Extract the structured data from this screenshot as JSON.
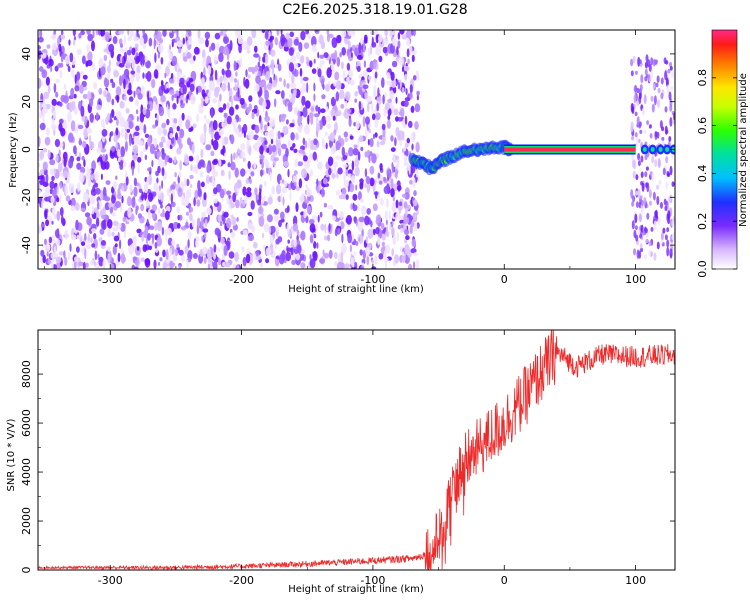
{
  "title": "C2E6.2025.318.19.01.G28",
  "chart_data": [
    {
      "type": "heatmap",
      "xlabel": "Height of straight line (km)",
      "ylabel": "Frequency (Hz)",
      "xlim": [
        -355,
        130
      ],
      "ylim": [
        -50,
        50
      ],
      "xticks": [
        -300,
        -200,
        -100,
        0,
        100
      ],
      "yticks": [
        -40,
        -20,
        0,
        20,
        40
      ],
      "colorbar": {
        "label": "Normalized spectral amplitude",
        "range": [
          0,
          1
        ],
        "ticks": [
          0.0,
          0.2,
          0.4,
          0.6,
          0.8
        ]
      },
      "noise_region_x": [
        -355,
        -70
      ],
      "doppler_track": [
        {
          "x": -70,
          "y": -4
        },
        {
          "x": -62,
          "y": -6
        },
        {
          "x": -55,
          "y": -8
        },
        {
          "x": -48,
          "y": -5
        },
        {
          "x": -40,
          "y": -3
        },
        {
          "x": -30,
          "y": -1
        },
        {
          "x": -20,
          "y": 0
        },
        {
          "x": -10,
          "y": 0.5
        },
        {
          "x": 0,
          "y": 1
        },
        {
          "x": 5,
          "y": 0
        }
      ],
      "carrier_line": {
        "x_start": 0,
        "x_end": 100,
        "y": 0,
        "amplitude": 1.0
      },
      "right_cluster_x": [
        100,
        130
      ],
      "grid": false
    },
    {
      "type": "line",
      "xlabel": "Height of straight line (km)",
      "ylabel": "SNR (10 * V/V)",
      "xlim": [
        -355,
        130
      ],
      "ylim": [
        0,
        9800
      ],
      "xticks": [
        -300,
        -200,
        -100,
        0,
        100
      ],
      "yticks": [
        0,
        2000,
        4000,
        6000,
        8000
      ],
      "color": "#ee2b2b",
      "trend": [
        {
          "x": -355,
          "y": 100
        },
        {
          "x": -250,
          "y": 100
        },
        {
          "x": -200,
          "y": 150
        },
        {
          "x": -150,
          "y": 250
        },
        {
          "x": -100,
          "y": 380
        },
        {
          "x": -70,
          "y": 480
        },
        {
          "x": -55,
          "y": 700
        },
        {
          "x": -45,
          "y": 2000
        },
        {
          "x": -40,
          "y": 3500
        },
        {
          "x": -30,
          "y": 4400
        },
        {
          "x": -15,
          "y": 5200
        },
        {
          "x": 0,
          "y": 6000
        },
        {
          "x": 15,
          "y": 7000
        },
        {
          "x": 30,
          "y": 8200
        },
        {
          "x": 40,
          "y": 8900
        },
        {
          "x": 55,
          "y": 8300
        },
        {
          "x": 75,
          "y": 8800
        },
        {
          "x": 100,
          "y": 8700
        },
        {
          "x": 130,
          "y": 8800
        }
      ],
      "grid": false
    }
  ]
}
